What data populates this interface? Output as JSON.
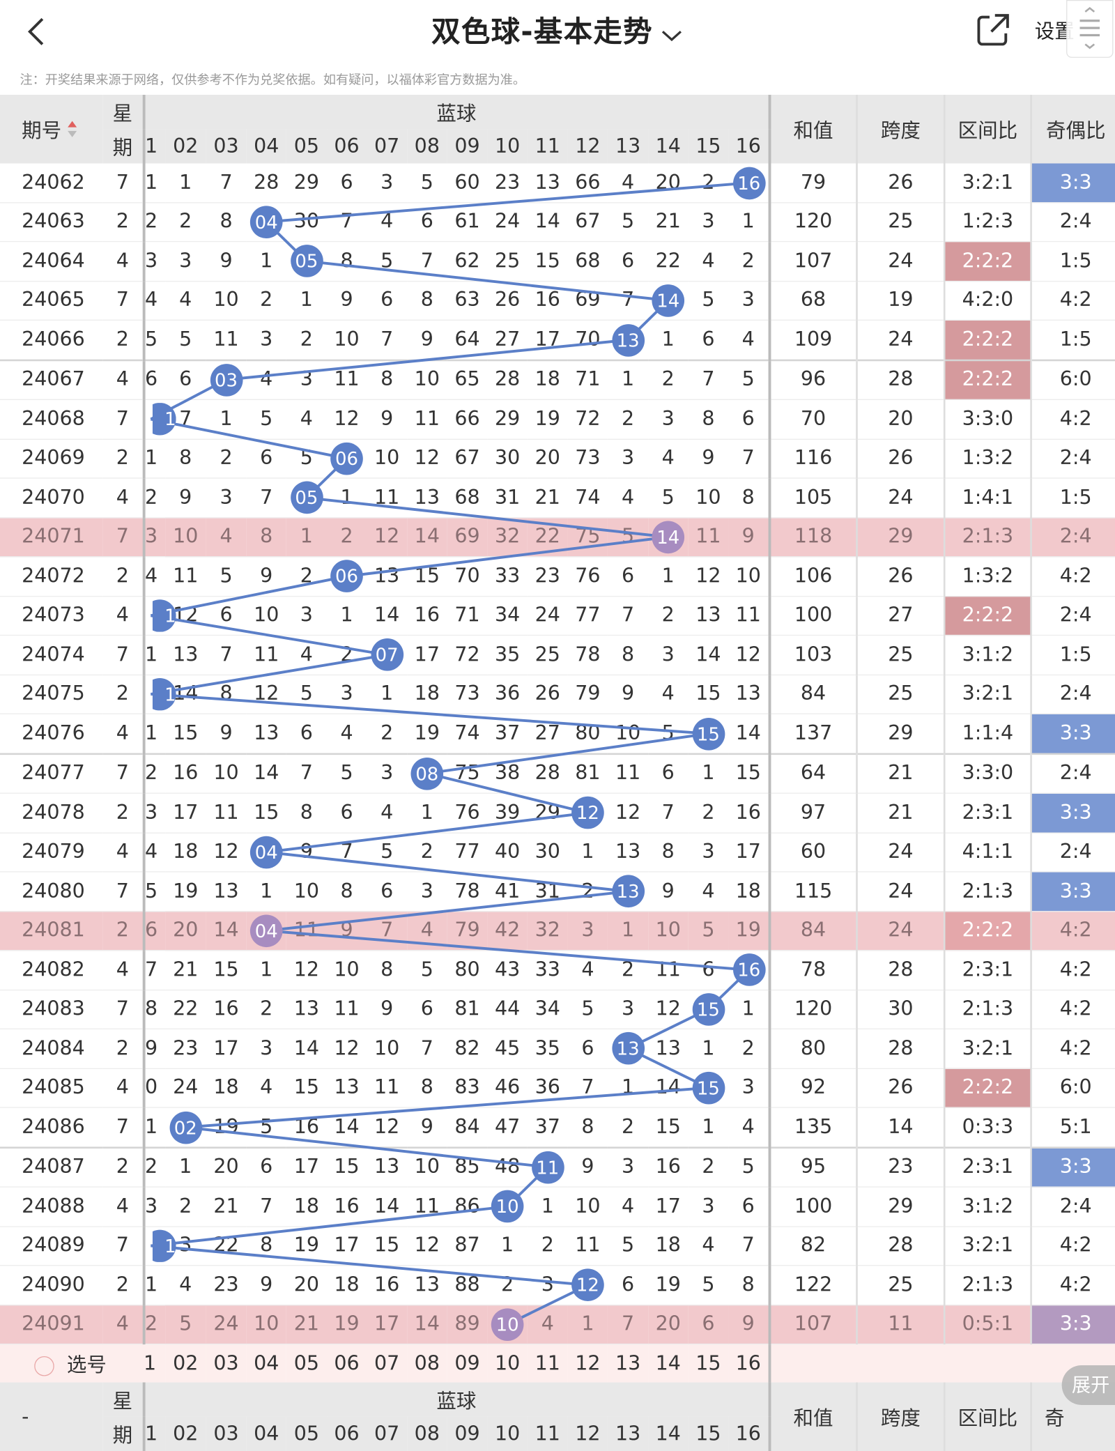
{
  "header": {
    "title": "双色球-基本走势",
    "settings_label": "设置",
    "note": "注：开奖结果来源于网络，仅供参考不作为兑奖依据。如有疑问，以福体彩官方数据为准。"
  },
  "columns": {
    "issue": "期号",
    "week_top": "星",
    "week_bottom": "期",
    "blue_group": "蓝球",
    "blue_numbers": [
      "1",
      "02",
      "03",
      "04",
      "05",
      "06",
      "07",
      "08",
      "09",
      "10",
      "11",
      "12",
      "13",
      "14",
      "15",
      "16"
    ],
    "sum": "和值",
    "span": "跨度",
    "zone": "区间比",
    "oddeven": "奇偶比",
    "oddeven_short": "奇"
  },
  "rows": [
    {
      "issue": "24062",
      "wk": "7",
      "cells": [
        "1",
        "1",
        "7",
        "28",
        "29",
        "6",
        "3",
        "5",
        "60",
        "23",
        "13",
        "66",
        "4",
        "20",
        "2",
        "16"
      ],
      "blue": 16,
      "sum": "79",
      "span": "26",
      "zone": "3:2:1",
      "oe": "3:3",
      "hl": false,
      "zr": false,
      "ob": true
    },
    {
      "issue": "24063",
      "wk": "2",
      "cells": [
        "2",
        "2",
        "8",
        "04",
        "30",
        "7",
        "4",
        "6",
        "61",
        "24",
        "14",
        "67",
        "5",
        "21",
        "3",
        "1"
      ],
      "blue": 4,
      "sum": "120",
      "span": "25",
      "zone": "1:2:3",
      "oe": "2:4",
      "hl": false,
      "zr": false,
      "ob": false
    },
    {
      "issue": "24064",
      "wk": "4",
      "cells": [
        "3",
        "3",
        "9",
        "1",
        "05",
        "8",
        "5",
        "7",
        "62",
        "25",
        "15",
        "68",
        "6",
        "22",
        "4",
        "2"
      ],
      "blue": 5,
      "sum": "107",
      "span": "24",
      "zone": "2:2:2",
      "oe": "1:5",
      "hl": false,
      "zr": true,
      "ob": false
    },
    {
      "issue": "24065",
      "wk": "7",
      "cells": [
        "4",
        "4",
        "10",
        "2",
        "1",
        "9",
        "6",
        "8",
        "63",
        "26",
        "16",
        "69",
        "7",
        "14",
        "5",
        "3"
      ],
      "blue": 14,
      "sum": "68",
      "span": "19",
      "zone": "4:2:0",
      "oe": "4:2",
      "hl": false,
      "zr": false,
      "ob": false
    },
    {
      "issue": "24066",
      "wk": "2",
      "cells": [
        "5",
        "5",
        "11",
        "3",
        "2",
        "10",
        "7",
        "9",
        "64",
        "27",
        "17",
        "70",
        "13",
        "1",
        "6",
        "4"
      ],
      "blue": 13,
      "sum": "109",
      "span": "24",
      "zone": "2:2:2",
      "oe": "1:5",
      "hl": false,
      "zr": true,
      "ob": false
    },
    {
      "issue": "24067",
      "wk": "4",
      "cells": [
        "6",
        "6",
        "03",
        "4",
        "3",
        "11",
        "8",
        "10",
        "65",
        "28",
        "18",
        "71",
        "1",
        "2",
        "7",
        "5"
      ],
      "blue": 3,
      "sum": "96",
      "span": "28",
      "zone": "2:2:2",
      "oe": "6:0",
      "hl": false,
      "zr": true,
      "ob": false,
      "sep": true
    },
    {
      "issue": "24068",
      "wk": "7",
      "cells": [
        "1",
        "7",
        "1",
        "5",
        "4",
        "12",
        "9",
        "11",
        "66",
        "29",
        "19",
        "72",
        "2",
        "3",
        "8",
        "6"
      ],
      "blue": 1,
      "sum": "70",
      "span": "20",
      "zone": "3:3:0",
      "oe": "4:2",
      "hl": false,
      "zr": false,
      "ob": false
    },
    {
      "issue": "24069",
      "wk": "2",
      "cells": [
        "1",
        "8",
        "2",
        "6",
        "5",
        "06",
        "10",
        "12",
        "67",
        "30",
        "20",
        "73",
        "3",
        "4",
        "9",
        "7"
      ],
      "blue": 6,
      "sum": "116",
      "span": "26",
      "zone": "1:3:2",
      "oe": "2:4",
      "hl": false,
      "zr": false,
      "ob": false
    },
    {
      "issue": "24070",
      "wk": "4",
      "cells": [
        "2",
        "9",
        "3",
        "7",
        "05",
        "1",
        "11",
        "13",
        "68",
        "31",
        "21",
        "74",
        "4",
        "5",
        "10",
        "8"
      ],
      "blue": 5,
      "sum": "105",
      "span": "24",
      "zone": "1:4:1",
      "oe": "1:5",
      "hl": false,
      "zr": false,
      "ob": false
    },
    {
      "issue": "24071",
      "wk": "7",
      "cells": [
        "3",
        "10",
        "4",
        "8",
        "1",
        "2",
        "12",
        "14",
        "69",
        "32",
        "22",
        "75",
        "5",
        "14",
        "11",
        "9"
      ],
      "blue": 14,
      "sum": "118",
      "span": "29",
      "zone": "2:1:3",
      "oe": "2:4",
      "hl": true,
      "zr": false,
      "ob": false
    },
    {
      "issue": "24072",
      "wk": "2",
      "cells": [
        "4",
        "11",
        "5",
        "9",
        "2",
        "06",
        "13",
        "15",
        "70",
        "33",
        "23",
        "76",
        "6",
        "1",
        "12",
        "10"
      ],
      "blue": 6,
      "sum": "106",
      "span": "26",
      "zone": "1:3:2",
      "oe": "4:2",
      "hl": false,
      "zr": false,
      "ob": false
    },
    {
      "issue": "24073",
      "wk": "4",
      "cells": [
        "1",
        "12",
        "6",
        "10",
        "3",
        "1",
        "14",
        "16",
        "71",
        "34",
        "24",
        "77",
        "7",
        "2",
        "13",
        "11"
      ],
      "blue": 1,
      "sum": "100",
      "span": "27",
      "zone": "2:2:2",
      "oe": "2:4",
      "hl": false,
      "zr": true,
      "ob": false
    },
    {
      "issue": "24074",
      "wk": "7",
      "cells": [
        "1",
        "13",
        "7",
        "11",
        "4",
        "2",
        "07",
        "17",
        "72",
        "35",
        "25",
        "78",
        "8",
        "3",
        "14",
        "12"
      ],
      "blue": 7,
      "sum": "103",
      "span": "25",
      "zone": "3:1:2",
      "oe": "1:5",
      "hl": false,
      "zr": false,
      "ob": false
    },
    {
      "issue": "24075",
      "wk": "2",
      "cells": [
        "1",
        "14",
        "8",
        "12",
        "5",
        "3",
        "1",
        "18",
        "73",
        "36",
        "26",
        "79",
        "9",
        "4",
        "15",
        "13"
      ],
      "blue": 1,
      "sum": "84",
      "span": "25",
      "zone": "3:2:1",
      "oe": "2:4",
      "hl": false,
      "zr": false,
      "ob": false
    },
    {
      "issue": "24076",
      "wk": "4",
      "cells": [
        "1",
        "15",
        "9",
        "13",
        "6",
        "4",
        "2",
        "19",
        "74",
        "37",
        "27",
        "80",
        "10",
        "5",
        "15",
        "14"
      ],
      "blue": 15,
      "sum": "137",
      "span": "29",
      "zone": "1:1:4",
      "oe": "3:3",
      "hl": false,
      "zr": false,
      "ob": true
    },
    {
      "issue": "24077",
      "wk": "7",
      "cells": [
        "2",
        "16",
        "10",
        "14",
        "7",
        "5",
        "3",
        "08",
        "75",
        "38",
        "28",
        "81",
        "11",
        "6",
        "1",
        "15"
      ],
      "blue": 8,
      "sum": "64",
      "span": "21",
      "zone": "3:3:0",
      "oe": "2:4",
      "hl": false,
      "zr": false,
      "ob": false,
      "sep": true
    },
    {
      "issue": "24078",
      "wk": "2",
      "cells": [
        "3",
        "17",
        "11",
        "15",
        "8",
        "6",
        "4",
        "1",
        "76",
        "39",
        "29",
        "12",
        "12",
        "7",
        "2",
        "16"
      ],
      "blue": 12,
      "sum": "97",
      "span": "21",
      "zone": "2:3:1",
      "oe": "3:3",
      "hl": false,
      "zr": false,
      "ob": true
    },
    {
      "issue": "24079",
      "wk": "4",
      "cells": [
        "4",
        "18",
        "12",
        "04",
        "9",
        "7",
        "5",
        "2",
        "77",
        "40",
        "30",
        "1",
        "13",
        "8",
        "3",
        "17"
      ],
      "blue": 4,
      "sum": "60",
      "span": "24",
      "zone": "4:1:1",
      "oe": "2:4",
      "hl": false,
      "zr": false,
      "ob": false
    },
    {
      "issue": "24080",
      "wk": "7",
      "cells": [
        "5",
        "19",
        "13",
        "1",
        "10",
        "8",
        "6",
        "3",
        "78",
        "41",
        "31",
        "2",
        "13",
        "9",
        "4",
        "18"
      ],
      "blue": 13,
      "sum": "115",
      "span": "24",
      "zone": "2:1:3",
      "oe": "3:3",
      "hl": false,
      "zr": false,
      "ob": true
    },
    {
      "issue": "24081",
      "wk": "2",
      "cells": [
        "6",
        "20",
        "14",
        "04",
        "11",
        "9",
        "7",
        "4",
        "79",
        "42",
        "32",
        "3",
        "1",
        "10",
        "5",
        "19"
      ],
      "blue": 4,
      "sum": "84",
      "span": "24",
      "zone": "2:2:2",
      "oe": "4:2",
      "hl": true,
      "zr": true,
      "ob": false
    },
    {
      "issue": "24082",
      "wk": "4",
      "cells": [
        "7",
        "21",
        "15",
        "1",
        "12",
        "10",
        "8",
        "5",
        "80",
        "43",
        "33",
        "4",
        "2",
        "11",
        "6",
        "16"
      ],
      "blue": 16,
      "sum": "78",
      "span": "28",
      "zone": "2:3:1",
      "oe": "4:2",
      "hl": false,
      "zr": false,
      "ob": false
    },
    {
      "issue": "24083",
      "wk": "7",
      "cells": [
        "8",
        "22",
        "16",
        "2",
        "13",
        "11",
        "9",
        "6",
        "81",
        "44",
        "34",
        "5",
        "3",
        "12",
        "15",
        "1"
      ],
      "blue": 15,
      "sum": "120",
      "span": "30",
      "zone": "2:1:3",
      "oe": "4:2",
      "hl": false,
      "zr": false,
      "ob": false
    },
    {
      "issue": "24084",
      "wk": "2",
      "cells": [
        "9",
        "23",
        "17",
        "3",
        "14",
        "12",
        "10",
        "7",
        "82",
        "45",
        "35",
        "6",
        "13",
        "13",
        "1",
        "2"
      ],
      "blue": 13,
      "sum": "80",
      "span": "28",
      "zone": "3:2:1",
      "oe": "4:2",
      "hl": false,
      "zr": false,
      "ob": false
    },
    {
      "issue": "24085",
      "wk": "4",
      "cells": [
        "0",
        "24",
        "18",
        "4",
        "15",
        "13",
        "11",
        "8",
        "83",
        "46",
        "36",
        "7",
        "1",
        "14",
        "15",
        "3"
      ],
      "blue": 15,
      "sum": "92",
      "span": "26",
      "zone": "2:2:2",
      "oe": "6:0",
      "hl": false,
      "zr": true,
      "ob": false
    },
    {
      "issue": "24086",
      "wk": "7",
      "cells": [
        "1",
        "02",
        "19",
        "5",
        "16",
        "14",
        "12",
        "9",
        "84",
        "47",
        "37",
        "8",
        "2",
        "15",
        "1",
        "4"
      ],
      "blue": 2,
      "sum": "135",
      "span": "14",
      "zone": "0:3:3",
      "oe": "5:1",
      "hl": false,
      "zr": false,
      "ob": false
    },
    {
      "issue": "24087",
      "wk": "2",
      "cells": [
        "2",
        "1",
        "20",
        "6",
        "17",
        "15",
        "13",
        "10",
        "85",
        "48",
        "11",
        "9",
        "3",
        "16",
        "2",
        "5"
      ],
      "blue": 11,
      "sum": "95",
      "span": "23",
      "zone": "2:3:1",
      "oe": "3:3",
      "hl": false,
      "zr": false,
      "ob": true,
      "sep": true
    },
    {
      "issue": "24088",
      "wk": "4",
      "cells": [
        "3",
        "2",
        "21",
        "7",
        "18",
        "16",
        "14",
        "11",
        "86",
        "10",
        "1",
        "10",
        "4",
        "17",
        "3",
        "6"
      ],
      "blue": 10,
      "sum": "100",
      "span": "29",
      "zone": "3:1:2",
      "oe": "2:4",
      "hl": false,
      "zr": false,
      "ob": false
    },
    {
      "issue": "24089",
      "wk": "7",
      "cells": [
        "1",
        "3",
        "22",
        "8",
        "19",
        "17",
        "15",
        "12",
        "87",
        "1",
        "2",
        "11",
        "5",
        "18",
        "4",
        "7"
      ],
      "blue": 1,
      "sum": "82",
      "span": "28",
      "zone": "3:2:1",
      "oe": "4:2",
      "hl": false,
      "zr": false,
      "ob": false
    },
    {
      "issue": "24090",
      "wk": "2",
      "cells": [
        "1",
        "4",
        "23",
        "9",
        "20",
        "18",
        "16",
        "13",
        "88",
        "2",
        "3",
        "12",
        "6",
        "19",
        "5",
        "8"
      ],
      "blue": 12,
      "sum": "122",
      "span": "25",
      "zone": "2:1:3",
      "oe": "4:2",
      "hl": false,
      "zr": false,
      "ob": false
    },
    {
      "issue": "24091",
      "wk": "4",
      "cells": [
        "2",
        "5",
        "24",
        "10",
        "21",
        "19",
        "17",
        "14",
        "89",
        "10",
        "4",
        "1",
        "7",
        "20",
        "6",
        "9"
      ],
      "blue": 10,
      "sum": "107",
      "span": "11",
      "zone": "0:5:1",
      "oe": "3:3",
      "hl": true,
      "zr": false,
      "ob": true
    }
  ],
  "select_row": {
    "label": "选号"
  },
  "footer": {
    "issue": "-"
  },
  "expand_label": "展开",
  "colors": {
    "ball_blue": "#5b7fc8",
    "ball_hl": "#a78cc0",
    "zone_red": "#d59a9d",
    "oe_blue": "#7c99d4",
    "highlight_row": "#f2c9cc",
    "select_row": "#fdeeed"
  }
}
